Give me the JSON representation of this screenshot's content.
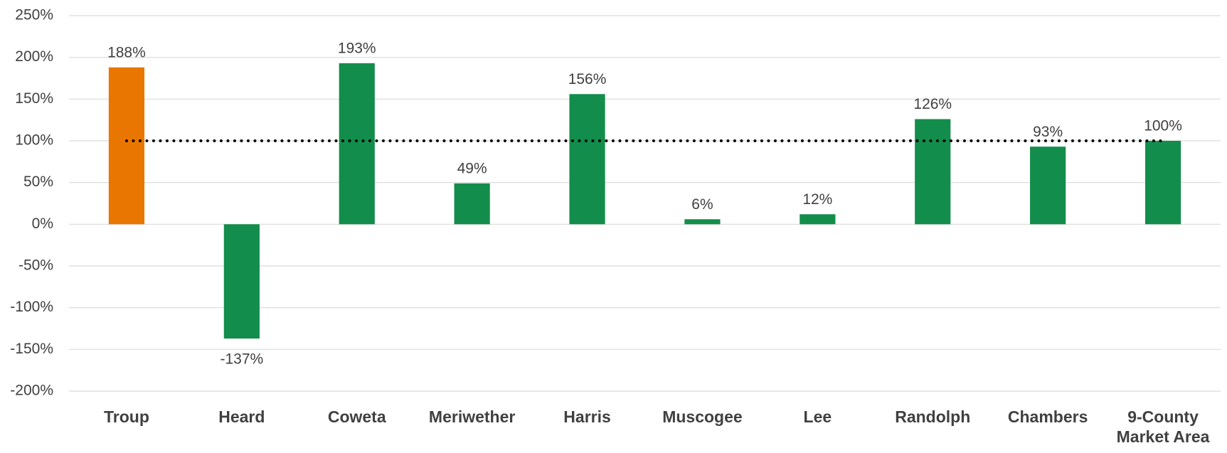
{
  "chart_data": {
    "type": "bar",
    "categories": [
      "Troup",
      "Heard",
      "Coweta",
      "Meriwether",
      "Harris",
      "Muscogee",
      "Lee",
      "Randolph",
      "Chambers",
      "9-County Market Area"
    ],
    "values": [
      188,
      -137,
      193,
      49,
      156,
      6,
      12,
      126,
      93,
      100
    ],
    "value_labels": [
      "188%",
      "-137%",
      "193%",
      "49%",
      "156%",
      "6%",
      "12%",
      "126%",
      "93%",
      "100%"
    ],
    "colors": [
      "#e97600",
      "#138d4b",
      "#138d4b",
      "#138d4b",
      "#138d4b",
      "#138d4b",
      "#138d4b",
      "#138d4b",
      "#138d4b",
      "#138d4b"
    ],
    "ylim": [
      -200,
      250
    ],
    "yticks": [
      {
        "value": -200,
        "label": "-200%"
      },
      {
        "value": -150,
        "label": "-150%"
      },
      {
        "value": -100,
        "label": "-100%"
      },
      {
        "value": -50,
        "label": "-50%"
      },
      {
        "value": 0,
        "label": "0%"
      },
      {
        "value": 50,
        "label": "50%"
      },
      {
        "value": 100,
        "label": "100%"
      },
      {
        "value": 150,
        "label": "150%"
      },
      {
        "value": 200,
        "label": "200%"
      },
      {
        "value": 250,
        "label": "250%"
      }
    ],
    "grid": true,
    "reference_line": 100
  }
}
